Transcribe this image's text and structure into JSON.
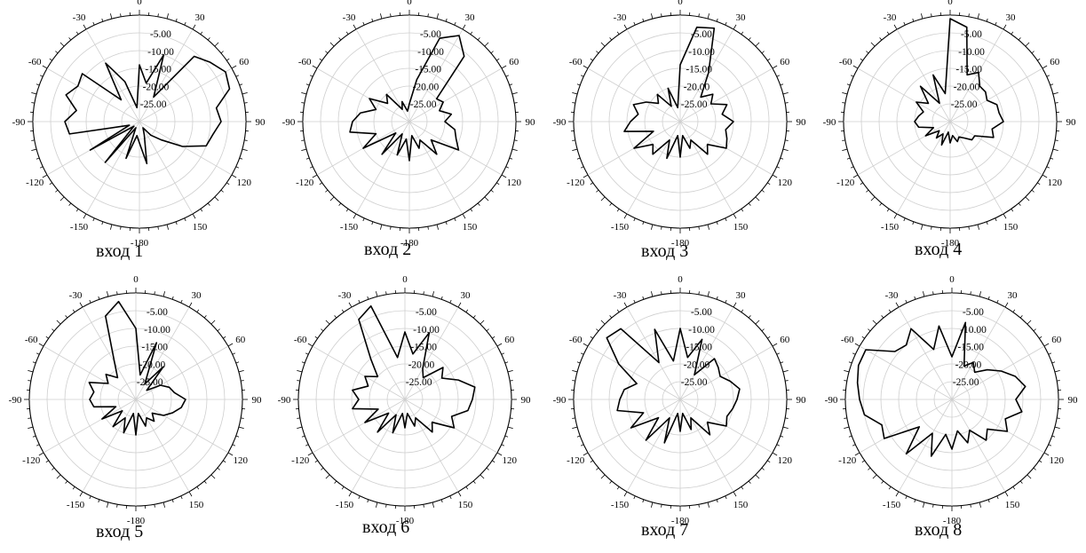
{
  "chart_data": [
    {
      "type": "polar",
      "caption": "вход 1",
      "angle_labels": [
        "0",
        "30",
        "60",
        "90",
        "120",
        "150",
        "-180",
        "-150",
        "-120",
        "-90",
        "-60",
        "-30"
      ],
      "radial_labels": [
        "-5.00",
        "-10.00",
        "-15.00",
        "-20.00",
        "-25.00"
      ],
      "rlim": [
        -30,
        0
      ],
      "grid": true,
      "series": [
        {
          "theta": [
            -180,
            -170,
            -160,
            -150,
            -140,
            -130,
            -120,
            -110,
            -100,
            -90,
            -80,
            -70,
            -60,
            -50,
            -40,
            -30,
            -20,
            -10,
            0,
            10,
            20,
            30,
            40,
            50,
            60,
            70,
            80,
            90,
            100,
            110,
            120,
            130,
            140,
            150,
            160,
            170
          ],
          "r": [
            -24,
            -26,
            -19,
            -28,
            -15,
            -28,
            -14,
            -27,
            -10,
            -9,
            -12,
            -8,
            -10,
            -9,
            -22,
            -11,
            -18,
            -26,
            -14,
            -19,
            -10,
            -22,
            -6,
            -4,
            -2,
            -3,
            -8,
            -7,
            -9,
            -10,
            -16,
            -22,
            -25,
            -28,
            -26,
            -18
          ]
        }
      ]
    },
    {
      "type": "polar",
      "caption": "вход 2",
      "angle_labels": [
        "0",
        "30",
        "60",
        "90",
        "120",
        "150",
        "-180",
        "-150",
        "-120",
        "-90",
        "-60",
        "-30"
      ],
      "radial_labels": [
        "-5.00",
        "-10.00",
        "-15.00",
        "-20.00",
        "-25.00"
      ],
      "rlim": [
        -30,
        0
      ],
      "grid": true,
      "series": [
        {
          "theta": [
            -180,
            -170,
            -160,
            -150,
            -140,
            -130,
            -120,
            -110,
            -100,
            -90,
            -80,
            -70,
            -60,
            -50,
            -40,
            -30,
            -20,
            -10,
            0,
            10,
            20,
            30,
            40,
            50,
            60,
            70,
            80,
            90,
            100,
            110,
            120,
            130,
            140,
            150,
            160,
            170
          ],
          "r": [
            -19,
            -25,
            -20,
            -26,
            -18,
            -25,
            -15,
            -20,
            -13,
            -14,
            -16,
            -20,
            -17,
            -22,
            -20,
            -26,
            -24,
            -27,
            -25,
            -18,
            -5,
            -2,
            -6,
            -20,
            -19,
            -21,
            -18,
            -20,
            -17,
            -16,
            -14,
            -22,
            -18,
            -24,
            -22,
            -26
          ]
        }
      ]
    },
    {
      "type": "polar",
      "caption": "вход 3",
      "angle_labels": [
        "0",
        "30",
        "60",
        "90",
        "120",
        "150",
        "-180",
        "-150",
        "-120",
        "-90",
        "-60",
        "-30"
      ],
      "radial_labels": [
        "-5.00",
        "-10.00",
        "-15.00",
        "-20.00",
        "-25.00"
      ],
      "rlim": [
        -30,
        0
      ],
      "grid": true,
      "series": [
        {
          "theta": [
            -180,
            -170,
            -160,
            -150,
            -140,
            -130,
            -120,
            -110,
            -100,
            -90,
            -80,
            -70,
            -60,
            -50,
            -40,
            -30,
            -20,
            -10,
            0,
            10,
            20,
            30,
            40,
            50,
            60,
            70,
            80,
            90,
            100,
            110,
            120,
            130,
            140,
            150,
            160,
            170
          ],
          "r": [
            -20,
            -26,
            -19,
            -24,
            -18,
            -20,
            -15,
            -22,
            -14,
            -16,
            -18,
            -16,
            -19,
            -22,
            -20,
            -25,
            -20,
            -26,
            -14,
            -3,
            -2,
            -14,
            -21,
            -18,
            -20,
            -16,
            -18,
            -15,
            -17,
            -16,
            -15,
            -20,
            -18,
            -24,
            -22,
            -26
          ]
        }
      ]
    },
    {
      "type": "polar",
      "caption": "вход 4",
      "angle_labels": [
        "0",
        "30",
        "60",
        "90",
        "120",
        "150",
        "-180",
        "-150",
        "-120",
        "-90",
        "-60",
        "-30"
      ],
      "radial_labels": [
        "-5.00",
        "-10.00",
        "-15.00",
        "-20.00",
        "-25.00"
      ],
      "rlim": [
        -30,
        0
      ],
      "grid": true,
      "series": [
        {
          "theta": [
            -180,
            -170,
            -160,
            -150,
            -140,
            -130,
            -120,
            -110,
            -100,
            -90,
            -80,
            -70,
            -60,
            -50,
            -40,
            -30,
            -20,
            -10,
            0,
            10,
            20,
            30,
            40,
            50,
            60,
            70,
            80,
            90,
            100,
            110,
            120,
            130,
            140,
            150,
            160,
            170
          ],
          "r": [
            -24,
            -27,
            -23,
            -26,
            -24,
            -26,
            -22,
            -25,
            -21,
            -20,
            -21,
            -22,
            -19,
            -22,
            -17,
            -24,
            -16,
            -22,
            -1,
            -3,
            -16,
            -14,
            -17,
            -17,
            -18,
            -16,
            -16,
            -15,
            -18,
            -17,
            -22,
            -22,
            -24,
            -25,
            -24,
            -26
          ]
        }
      ]
    },
    {
      "type": "polar",
      "caption": "вход 5",
      "angle_labels": [
        "0",
        "30",
        "60",
        "90",
        "120",
        "150",
        "-180",
        "-150",
        "-120",
        "-90",
        "-60",
        "-30"
      ],
      "radial_labels": [
        "-5.00",
        "-10.00",
        "-15.00",
        "-20.00",
        "-25.00"
      ],
      "rlim": [
        -30,
        0
      ],
      "grid": true,
      "series": [
        {
          "theta": [
            -180,
            -170,
            -160,
            -150,
            -140,
            -130,
            -120,
            -110,
            -100,
            -90,
            -80,
            -70,
            -60,
            -50,
            -40,
            -30,
            -20,
            -10,
            0,
            10,
            20,
            30,
            40,
            50,
            60,
            70,
            80,
            90,
            100,
            110,
            120,
            130,
            140,
            150,
            160,
            170
          ],
          "r": [
            -20,
            -26,
            -20,
            -24,
            -20,
            -25,
            -19,
            -24,
            -18,
            -17,
            -18,
            -16,
            -21,
            -19,
            -22,
            -18,
            -5,
            -2,
            -10,
            -23,
            -13,
            -25,
            -18,
            -26,
            -22,
            -20,
            -19,
            -16,
            -17,
            -19,
            -21,
            -24,
            -22,
            -24,
            -22,
            -26
          ]
        }
      ]
    },
    {
      "type": "polar",
      "caption": "вход 6",
      "angle_labels": [
        "0",
        "30",
        "60",
        "90",
        "120",
        "150",
        "-180",
        "-150",
        "-120",
        "-90",
        "-60",
        "-30"
      ],
      "radial_labels": [
        "-5.00",
        "-10.00",
        "-15.00",
        "-20.00",
        "-25.00"
      ],
      "rlim": [
        -30,
        0
      ],
      "grid": true,
      "series": [
        {
          "theta": [
            -180,
            -170,
            -160,
            -150,
            -140,
            -130,
            -120,
            -110,
            -100,
            -90,
            -80,
            -70,
            -60,
            -50,
            -40,
            -30,
            -20,
            -10,
            0,
            10,
            20,
            30,
            40,
            50,
            60,
            70,
            80,
            90,
            100,
            110,
            120,
            130,
            140,
            150,
            160,
            170
          ],
          "r": [
            -22,
            -26,
            -20,
            -25,
            -18,
            -24,
            -17,
            -22,
            -15,
            -17,
            -15,
            -19,
            -17,
            -20,
            -15,
            -4,
            -2,
            -18,
            -11,
            -17,
            -10,
            -20,
            -22,
            -16,
            -18,
            -14,
            -10,
            -11,
            -12,
            -16,
            -14,
            -20,
            -18,
            -24,
            -22,
            -26
          ]
        }
      ]
    },
    {
      "type": "polar",
      "caption": "вход 7",
      "angle_labels": [
        "0",
        "30",
        "60",
        "90",
        "120",
        "150",
        "-180",
        "-150",
        "-120",
        "-90",
        "-60",
        "-30"
      ],
      "radial_labels": [
        "-5.00",
        "-10.00",
        "-15.00",
        "-20.00",
        "-25.00"
      ],
      "rlim": [
        -30,
        0
      ],
      "grid": true,
      "series": [
        {
          "theta": [
            -180,
            -170,
            -160,
            -150,
            -140,
            -130,
            -120,
            -110,
            -100,
            -90,
            -80,
            -70,
            -60,
            -50,
            -40,
            -30,
            -20,
            -10,
            0,
            10,
            20,
            30,
            40,
            50,
            60,
            70,
            80,
            90,
            100,
            110,
            120,
            130,
            140,
            150,
            160,
            170
          ],
          "r": [
            -21,
            -26,
            -17,
            -24,
            -15,
            -22,
            -14,
            -19,
            -12,
            -13,
            -14,
            -17,
            -10,
            -3,
            -4,
            -18,
            -9,
            -19,
            -10,
            -18,
            -12,
            -22,
            -15,
            -16,
            -17,
            -15,
            -13,
            -14,
            -15,
            -16,
            -15,
            -20,
            -17,
            -24,
            -21,
            -26
          ]
        }
      ]
    },
    {
      "type": "polar",
      "caption": "вход 8",
      "angle_labels": [
        "0",
        "30",
        "60",
        "90",
        "120",
        "150",
        "-180",
        "-150",
        "-120",
        "-90",
        "-60",
        "-30"
      ],
      "radial_labels": [
        "-5.00",
        "-10.00",
        "-15.00",
        "-20.00",
        "-25.00"
      ],
      "rlim": [
        -30,
        0
      ],
      "grid": true,
      "series": [
        {
          "theta": [
            -180,
            -170,
            -160,
            -150,
            -140,
            -130,
            -120,
            -110,
            -100,
            -90,
            -80,
            -70,
            -60,
            -50,
            -40,
            -30,
            -20,
            -10,
            0,
            10,
            20,
            30,
            40,
            50,
            60,
            70,
            80,
            90,
            100,
            110,
            120,
            130,
            140,
            150,
            160,
            170
          ],
          "r": [
            -16,
            -20,
            -13,
            -19,
            -10,
            -18,
            -8,
            -9,
            -5,
            -4,
            -3,
            -2,
            -2,
            -9,
            -10,
            -7,
            -15,
            -9,
            -18,
            -8,
            -20,
            -18,
            -20,
            -17,
            -14,
            -11,
            -9,
            -12,
            -10,
            -14,
            -12,
            -17,
            -15,
            -20,
            -17,
            -21
          ]
        }
      ]
    }
  ]
}
